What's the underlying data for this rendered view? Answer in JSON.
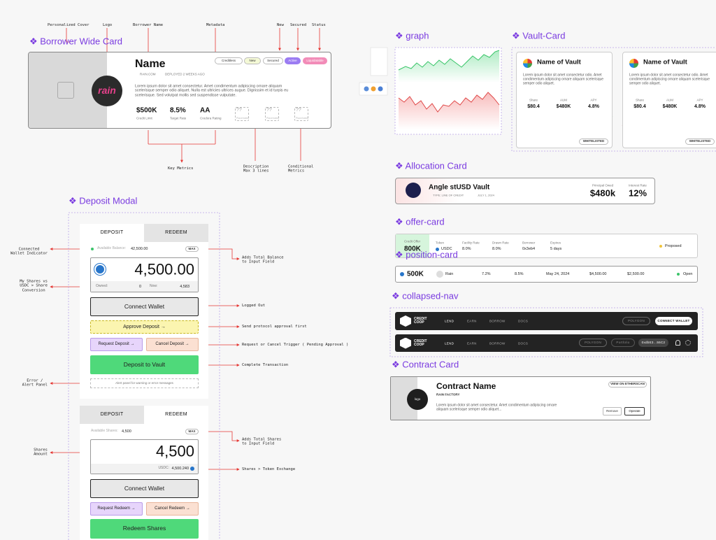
{
  "borrower_card": {
    "section_title": "❖ Borrower Wide Card",
    "annotations": [
      "Personalized Cover",
      "Logo",
      "Borrower Name",
      "Metadata",
      "New",
      "Secured",
      "Status",
      "Key Metrics",
      "Description\nMax 3 lines",
      "Conditional\nMetrics"
    ],
    "logo": "rain",
    "name": "Name",
    "website": "RAIN.COM",
    "deployed": "DEPLOYED 2 WEEKS AGO",
    "badges": [
      "Creditless",
      "New",
      "Secured",
      "Active",
      "Liquidatable"
    ],
    "description": "Lorem ipsum dolor sit amet consectetur. Amet condimentum adipiscing ornare aliquam scelerisque semper odio aliquet. Nulla est ultricies ultrices augue. Dignissim et id turpis eu scelerisque. Sed volutpat mollis sed suspendisse vulputate.",
    "metrics": [
      {
        "value": "$500K",
        "label": "Credit Limit"
      },
      {
        "value": "8.5%",
        "label": "Target Rate"
      },
      {
        "value": "AA",
        "label": "Credora Rating"
      },
      {
        "value": "??",
        "label": "Placeholder"
      },
      {
        "value": "??",
        "label": "Placeholder"
      },
      {
        "value": "??",
        "label": "Placeholder"
      }
    ]
  },
  "deposit_modal": {
    "section_title": "❖ Deposit Modal",
    "annotations_left": [
      "Connected\nWallet Indicator",
      "My Shares vs\nUSDC > Share\nConversion",
      "Error /\nAlert Panel",
      "Shares\nAmount"
    ],
    "annotations_right": [
      "Adds Total Balance\nto Input Field",
      "Logged Out",
      "Send protocol approval first",
      "Request or Cancel Trigger ( Pending Approval )",
      "Complete Transaction",
      "Adds Total Shares\nto Input Field",
      "Shares > Token Exchange"
    ],
    "deposit": {
      "tabs": [
        "DEPOSIT",
        "REDEEM"
      ],
      "balance_label": "Available Balance:",
      "balance_value": "42,500.00",
      "max": "MAX",
      "amount": "4,500.00",
      "owned_label": "Owned:",
      "owned_value": "0",
      "now_label": "Now:",
      "now_value": "4,583",
      "connect": "Connect Wallet",
      "approve": "Approve Deposit →",
      "request": "Request Deposit →",
      "cancel": "Cancel Deposit →",
      "submit": "Deposit to Vault",
      "alert": "Alert panel for warning or error messages"
    },
    "redeem": {
      "tabs": [
        "DEPOSIT",
        "REDEEM"
      ],
      "shares_label": "Available Shares:",
      "shares_value": "4,500",
      "max": "MAX",
      "amount": "4,500",
      "usdc_label": "USDC:",
      "usdc_value": "4,500.240",
      "connect": "Connect Wallet",
      "request": "Request Redeem →",
      "cancel": "Cancel Redeem →",
      "submit": "Redeem Shares"
    }
  },
  "graph": {
    "section_title": "❖ graph"
  },
  "vault_cards": {
    "section_title": "❖ Vault-Card",
    "cards": [
      {
        "name": "Name of Vault",
        "description": "Lorem ipsum dolor sit amet consectetur odio. Amet condimentum adipiscing ornare aliquam scelerisque semper odio aliquet.",
        "metrics": [
          {
            "label": "Share",
            "value": "$80.4"
          },
          {
            "label": "AUM",
            "value": "$480K"
          },
          {
            "label": "APY",
            "value": "4.8%"
          }
        ],
        "badge": "WHITELISTED"
      },
      {
        "name": "Name of Vault",
        "description": "Lorem ipsum dolor sit amet consectetur odio. Amet condimentum adipiscing ornare aliquam scelerisque semper odio aliquet.",
        "metrics": [
          {
            "label": "Share",
            "value": "$80.4"
          },
          {
            "label": "AUM",
            "value": "$480K"
          },
          {
            "label": "APY",
            "value": "4.8%"
          }
        ],
        "badge": "WHITELISTED"
      }
    ]
  },
  "allocation_card": {
    "section_title": "❖ Allocation Card",
    "name": "Angle stUSD Vault",
    "type": "TYPE: LINE OF CREDIT",
    "date": "JULY 1, 2024",
    "principal_label": "Principal Owed",
    "principal": "$480k",
    "rate_label": "Interest Rate",
    "rate": "12%"
  },
  "offer_card": {
    "section_title": "❖ offer-card",
    "offer_label": "Credit Offer",
    "offer_value": "800K",
    "columns": [
      {
        "label": "Token",
        "value": "USDC"
      },
      {
        "label": "Facility Rate",
        "value": "8.0%"
      },
      {
        "label": "Drawn Rate",
        "value": "8.0%"
      },
      {
        "label": "Borrower",
        "value": "0x3eb4"
      },
      {
        "label": "Expires",
        "value": "5 days"
      }
    ],
    "status": "Proposed"
  },
  "position_card": {
    "section_title": "❖ position-card",
    "amount": "500K",
    "values": [
      "Rain",
      "7.2%",
      "8.5%",
      "May 24, 2024",
      "$4,500.00",
      "$2,500.00"
    ],
    "status": "Open"
  },
  "collapsed_nav": {
    "section_title": "❖ collapsed-nav",
    "brand": "CREDIT\nCOOP",
    "links": [
      "LEND",
      "EARN",
      "BORROW",
      "DOCS"
    ],
    "network": "POLYGON",
    "connect": "CONNECT WALLET",
    "portfolio": "Portfolio",
    "address": "0xdbE3...55C2"
  },
  "contract_card": {
    "section_title": "❖ Contract Card",
    "logo": "logo",
    "name": "Contract Name",
    "factory": "RAIN FACTORY",
    "description": "Lorem ipsum dolor sit amet consectetur. Amet condimentum adipiscing ornare aliquam scelerisque semper odio aliquet...",
    "etherscan": "VIEW ON ETHERSCAN",
    "remove": "Remove",
    "operate": "Operate"
  }
}
